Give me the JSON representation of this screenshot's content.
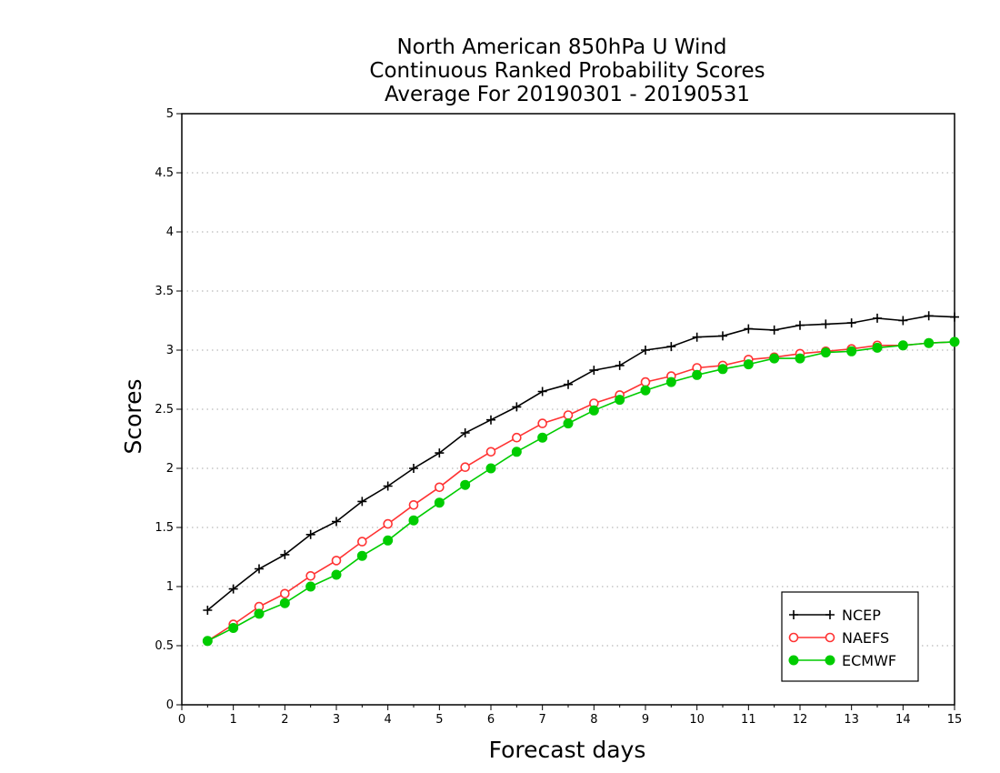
{
  "chart_data": {
    "type": "line",
    "title_lines": [
      "North American 850hPa U Wind",
      "Continuous Ranked Probability Scores",
      "Average For 20190301 - 20190531"
    ],
    "xlabel": "Forecast days",
    "ylabel": "Scores",
    "xlim": [
      0,
      15
    ],
    "ylim": [
      0,
      5
    ],
    "x_ticks": [
      "0",
      "1",
      "2",
      "3",
      "4",
      "5",
      "6",
      "7",
      "8",
      "9",
      "10",
      "11",
      "12",
      "13",
      "14",
      "15"
    ],
    "y_ticks": [
      "0",
      "0.5",
      "1",
      "1.5",
      "2",
      "2.5",
      "3",
      "3.5",
      "4",
      "4.5",
      "5"
    ],
    "grid": "horizontal dotted",
    "legend_position": "lower-right",
    "x": [
      0.5,
      1,
      1.5,
      2,
      2.5,
      3,
      3.5,
      4,
      4.5,
      5,
      5.5,
      6,
      6.5,
      7,
      7.5,
      8,
      8.5,
      9,
      9.5,
      10,
      10.5,
      11,
      11.5,
      12,
      12.5,
      13,
      13.5,
      14,
      14.5,
      15
    ],
    "series": [
      {
        "name": "NCEP",
        "color": "#000000",
        "marker": "plus",
        "values": [
          0.8,
          0.98,
          1.15,
          1.27,
          1.44,
          1.55,
          1.72,
          1.85,
          2.0,
          2.13,
          2.3,
          2.41,
          2.52,
          2.65,
          2.71,
          2.83,
          2.87,
          3.0,
          3.03,
          3.11,
          3.12,
          3.18,
          3.17,
          3.21,
          3.22,
          3.23,
          3.27,
          3.25,
          3.29,
          3.28
        ]
      },
      {
        "name": "NAEFS",
        "color": "#ff3333",
        "marker": "open-circle",
        "values": [
          0.54,
          0.68,
          0.83,
          0.94,
          1.09,
          1.22,
          1.38,
          1.53,
          1.69,
          1.84,
          2.01,
          2.14,
          2.26,
          2.38,
          2.45,
          2.55,
          2.62,
          2.73,
          2.78,
          2.85,
          2.87,
          2.92,
          2.94,
          2.97,
          2.99,
          3.01,
          3.04,
          3.04,
          3.06,
          3.07
        ]
      },
      {
        "name": "ECMWF",
        "color": "#00cc00",
        "marker": "filled-circle",
        "values": [
          0.54,
          0.65,
          0.77,
          0.86,
          1.0,
          1.1,
          1.26,
          1.39,
          1.56,
          1.71,
          1.86,
          2.0,
          2.14,
          2.26,
          2.38,
          2.49,
          2.58,
          2.66,
          2.73,
          2.79,
          2.84,
          2.88,
          2.93,
          2.93,
          2.98,
          2.99,
          3.02,
          3.04,
          3.06,
          3.07
        ]
      }
    ]
  }
}
